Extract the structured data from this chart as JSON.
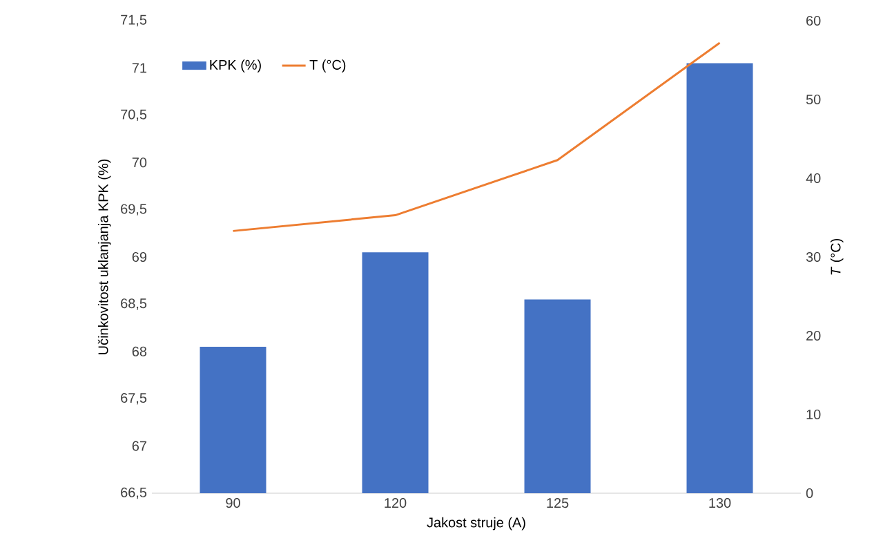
{
  "chart_data": {
    "type": "bar",
    "xlabel": "Jakost struje (A)",
    "ylabel": "Učinkovitost uklanjanja KPK (%)",
    "y2label": "*T* (°C)",
    "categories": [
      "90",
      "120",
      "125",
      "130"
    ],
    "series": [
      {
        "name": "KPK (%)",
        "color": "#4472c4",
        "values": [
          68.05,
          69.05,
          68.55,
          71.05
        ]
      },
      {
        "name": "T (°C)",
        "type": "line",
        "axis": "y2",
        "color": "#ed7d31",
        "values": [
          33.3,
          35.3,
          42.3,
          57.2
        ]
      }
    ],
    "ylim": [
      66.5,
      71.5
    ],
    "yticks": [
      {
        "value": 66.5,
        "label": "66,5"
      },
      67,
      {
        "value": 67.5,
        "label": "67,5"
      },
      68,
      {
        "value": 68.5,
        "label": "68,5"
      },
      69,
      {
        "value": 69.5,
        "label": "69,5"
      },
      70,
      {
        "value": 70.5,
        "label": "70,5"
      },
      71,
      {
        "value": 71.5,
        "label": "71,5"
      }
    ],
    "y2lim": [
      0,
      60
    ],
    "y2ticks": [
      0,
      10,
      20,
      30,
      40,
      50,
      60
    ],
    "legend": "top left",
    "grid": false
  }
}
